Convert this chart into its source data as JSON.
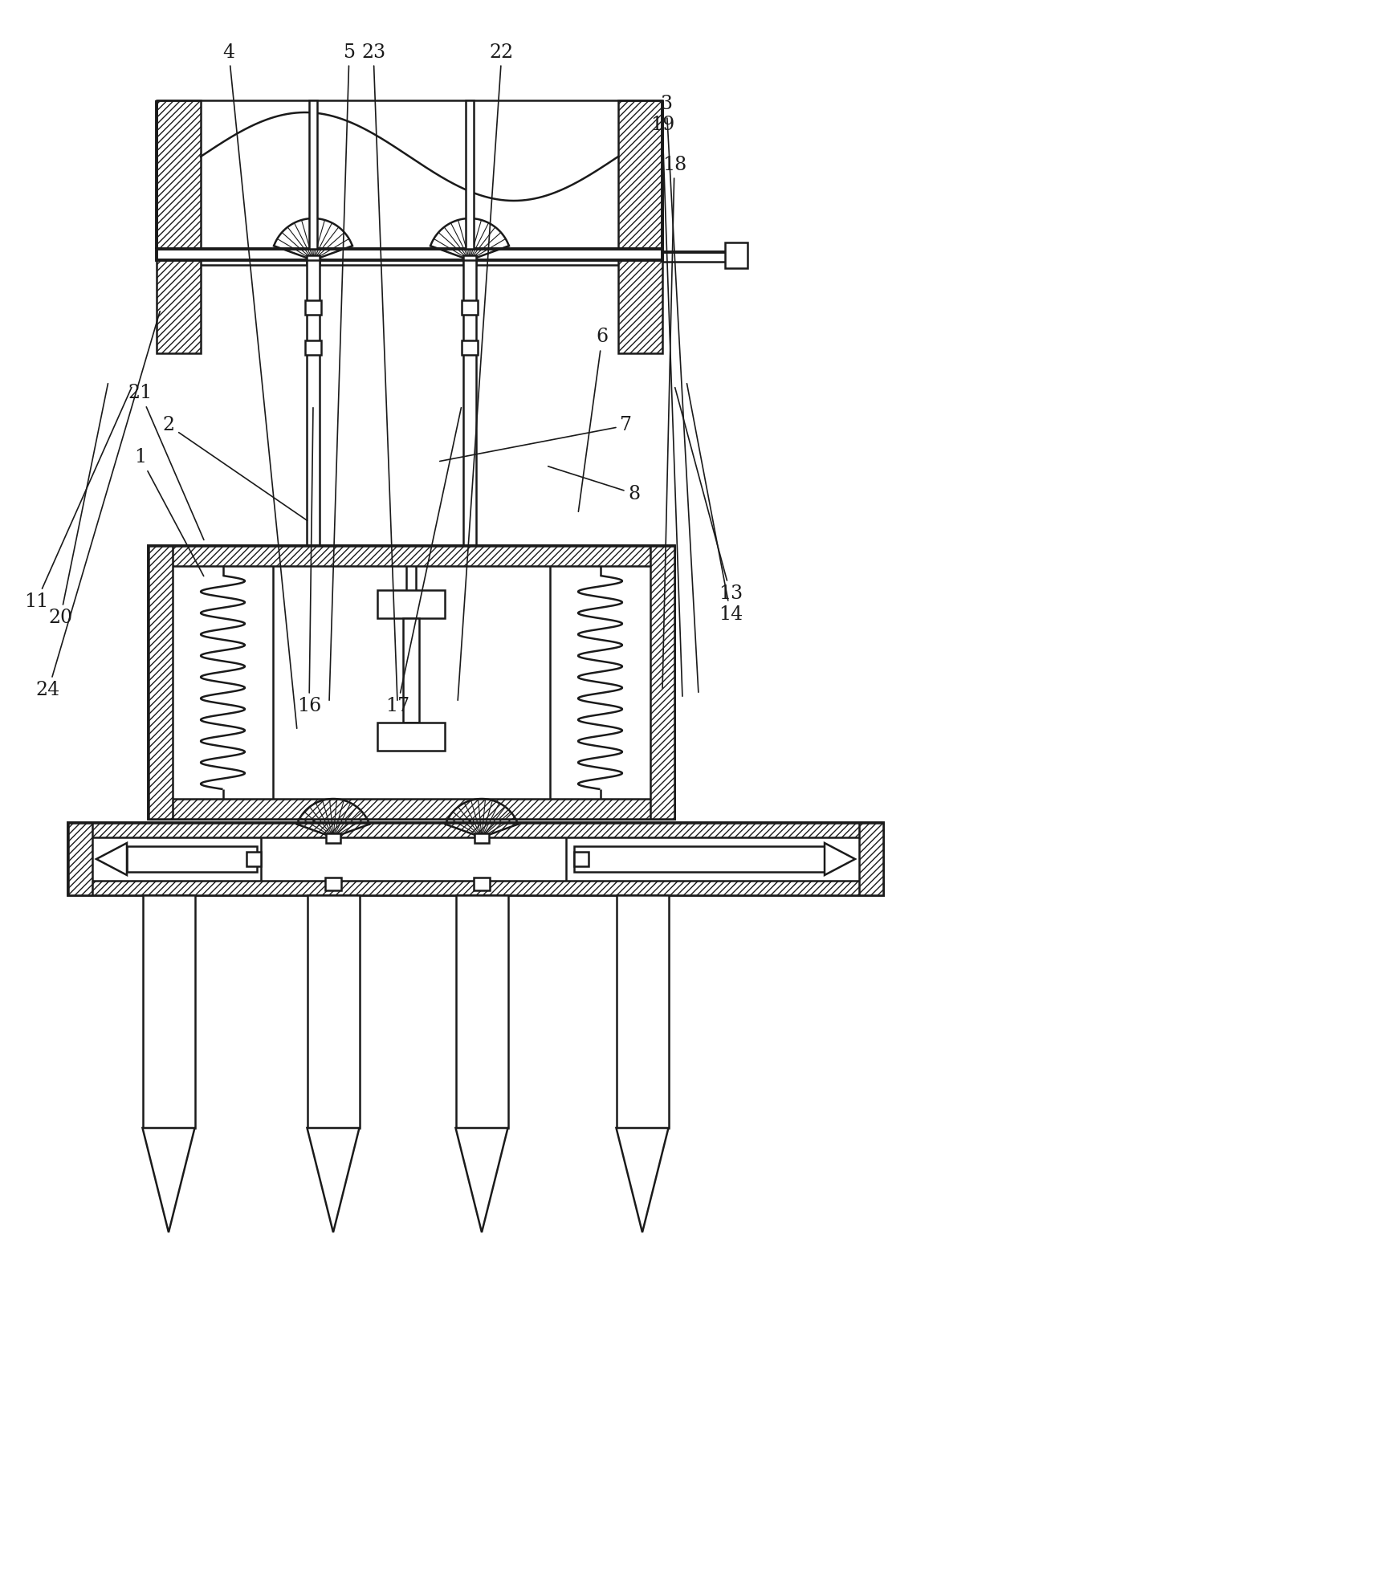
{
  "bg_color": "#ffffff",
  "lc": "#1a1a1a",
  "lw": 1.8,
  "tlw": 2.8,
  "figsize": [
    17.25,
    19.68
  ],
  "dpi": 100,
  "labels": [
    [
      "1",
      175,
      570,
      255,
      720
    ],
    [
      "2",
      210,
      530,
      385,
      650
    ],
    [
      "3",
      830,
      130,
      870,
      865
    ],
    [
      "4",
      285,
      65,
      370,
      910
    ],
    [
      "5",
      435,
      65,
      410,
      875
    ],
    [
      "6",
      750,
      420,
      720,
      640
    ],
    [
      "7",
      780,
      530,
      545,
      575
    ],
    [
      "8",
      790,
      615,
      680,
      580
    ],
    [
      "11",
      45,
      750,
      165,
      480
    ],
    [
      "13",
      910,
      740,
      840,
      480
    ],
    [
      "14",
      910,
      765,
      855,
      475
    ],
    [
      "16",
      385,
      880,
      390,
      505
    ],
    [
      "17",
      495,
      880,
      575,
      505
    ],
    [
      "18",
      840,
      205,
      825,
      860
    ],
    [
      "19",
      825,
      155,
      850,
      870
    ],
    [
      "20",
      75,
      770,
      135,
      475
    ],
    [
      "21",
      175,
      490,
      255,
      675
    ],
    [
      "22",
      625,
      65,
      570,
      875
    ],
    [
      "23",
      465,
      65,
      495,
      875
    ],
    [
      "24",
      60,
      860,
      200,
      385
    ]
  ]
}
